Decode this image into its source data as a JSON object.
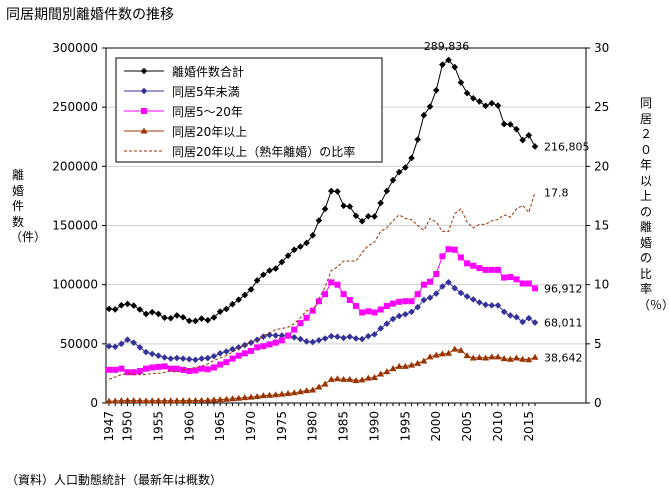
{
  "title": "同居期間別離婚件数の推移",
  "source": "（資料）人口動態統計（最新年は概数）",
  "chart_data": {
    "type": "line",
    "ylabel": "離婚件数（件）",
    "ylabel_right": "同居２０年以上の離婚の比率（％）",
    "ylim": [
      0,
      300000
    ],
    "ylim_right": [
      0,
      30
    ],
    "yticks": [
      "0",
      "50000",
      "100000",
      "150000",
      "200000",
      "250000",
      "300000"
    ],
    "yticks_right": [
      "0",
      "5",
      "10",
      "15",
      "20",
      "25",
      "30"
    ],
    "xlim": [
      1947,
      2016
    ],
    "xticks": [
      "1947",
      "1950",
      "1955",
      "1960",
      "1965",
      "1970",
      "1975",
      "1980",
      "1985",
      "1990",
      "1995",
      "2000",
      "2005",
      "2010",
      "2015"
    ],
    "grid": true,
    "legend": "top-left",
    "series": [
      {
        "name": "離婚件数合計",
        "color": "#000000",
        "marker": "diamond",
        "axis": "left",
        "values": [
          79551,
          79032,
          82575,
          83689,
          82331,
          79021,
          75255,
          76759,
          75267,
          72040,
          71651,
          74004,
          72455,
          69410,
          69323,
          71394,
          69996,
          72306,
          77195,
          79432,
          83478,
          87327,
          91280,
          95937,
          103595,
          108382,
          111877,
          113622,
          119135,
          124512,
          129485,
          132146,
          135250,
          141689,
          154221,
          163980,
          179150,
          178746,
          166640,
          166054,
          158227,
          153600,
          157811,
          157608,
          168969,
          179191,
          188297,
          195106,
          199016,
          206955,
          222635,
          243183,
          250529,
          264246,
          285911,
          289836,
          283854,
          270804,
          261917,
          257475,
          254832,
          251136,
          253353,
          251378,
          235719,
          235406,
          231383,
          222107,
          226215,
          216805
        ]
      },
      {
        "name": "同居5年未満",
        "color": "#333399",
        "marker": "diamond",
        "axis": "left",
        "values": [
          48000,
          47500,
          50000,
          53500,
          51000,
          47000,
          43000,
          41500,
          40000,
          38500,
          37500,
          38000,
          37500,
          37000,
          36500,
          37500,
          38000,
          39500,
          42000,
          43500,
          45500,
          47000,
          49000,
          51000,
          53500,
          56000,
          57500,
          57000,
          57000,
          56500,
          55500,
          54000,
          52000,
          51500,
          53000,
          54500,
          56500,
          56000,
          55000,
          56000,
          54500,
          54000,
          56500,
          58000,
          63000,
          67000,
          71000,
          73500,
          75000,
          77000,
          81000,
          87000,
          89000,
          92500,
          98500,
          102000,
          97000,
          93000,
          90000,
          87500,
          85000,
          83000,
          82500,
          82500,
          77000,
          74000,
          72500,
          68500,
          71700,
          68011
        ]
      },
      {
        "name": "同居5～20年",
        "color": "#ff00ff",
        "marker": "square",
        "axis": "left",
        "values": [
          28000,
          28000,
          29000,
          26000,
          26000,
          27000,
          29000,
          30000,
          30500,
          31000,
          29000,
          29000,
          28000,
          27000,
          27500,
          29000,
          28500,
          30000,
          32500,
          34500,
          37500,
          40000,
          42000,
          44000,
          47000,
          48000,
          49500,
          51000,
          53000,
          57000,
          62000,
          67500,
          72000,
          78000,
          86000,
          92000,
          102000,
          100000,
          92000,
          87000,
          82000,
          76500,
          77500,
          76500,
          79000,
          82000,
          84000,
          85500,
          86000,
          86000,
          92000,
          100000,
          102500,
          109000,
          124000,
          130000,
          129500,
          123000,
          118000,
          116000,
          114000,
          112500,
          112500,
          112500,
          106000,
          106500,
          104500,
          101000,
          101000,
          96912
        ]
      },
      {
        "name": "同居20年以上",
        "color": "#993300",
        "marker": "triangle",
        "axis": "left",
        "values": [
          1600,
          1700,
          2000,
          2100,
          2000,
          1900,
          1800,
          1900,
          1900,
          1900,
          1900,
          1900,
          2000,
          2000,
          2100,
          2200,
          2300,
          2600,
          2900,
          3200,
          3600,
          4000,
          4500,
          5000,
          5500,
          6200,
          6600,
          7000,
          7500,
          8000,
          8700,
          9500,
          10500,
          11000,
          13500,
          16000,
          20000,
          20500,
          20000,
          20000,
          19000,
          19500,
          21000,
          21500,
          24500,
          26500,
          29000,
          31000,
          31000,
          32000,
          33500,
          35500,
          39000,
          40500,
          41500,
          42000,
          45500,
          44500,
          40000,
          38000,
          38500,
          38000,
          39000,
          39000,
          37500,
          37000,
          38000,
          37000,
          36500,
          38642
        ]
      },
      {
        "name": "同居20年以上（熟年離婚）の比率",
        "color": "#993300",
        "marker": "none",
        "dashed": true,
        "axis": "right",
        "values": [
          2.0,
          2.2,
          2.4,
          2.5,
          2.4,
          2.4,
          2.4,
          2.5,
          2.5,
          2.6,
          2.7,
          2.6,
          2.8,
          2.9,
          3.0,
          3.1,
          3.3,
          3.6,
          3.8,
          4.0,
          4.3,
          4.6,
          4.9,
          5.2,
          5.3,
          5.7,
          5.9,
          6.2,
          6.3,
          6.4,
          6.7,
          7.2,
          7.8,
          7.8,
          8.8,
          9.8,
          11.2,
          11.5,
          12.0,
          12.0,
          12.0,
          12.7,
          13.3,
          13.6,
          14.5,
          14.8,
          15.4,
          15.9,
          15.6,
          15.5,
          15.0,
          14.6,
          15.6,
          15.3,
          14.5,
          14.5,
          16.0,
          16.4,
          15.3,
          14.8,
          15.1,
          15.1,
          15.4,
          15.5,
          15.9,
          15.7,
          16.4,
          16.7,
          16.1,
          17.8
        ]
      }
    ],
    "annotations": {
      "peak_total": "289,836",
      "last_total": "216,805",
      "last_under5": "68,011",
      "last_5to20": "96,912",
      "last_over20": "38,642",
      "last_ratio": "17.8"
    }
  }
}
